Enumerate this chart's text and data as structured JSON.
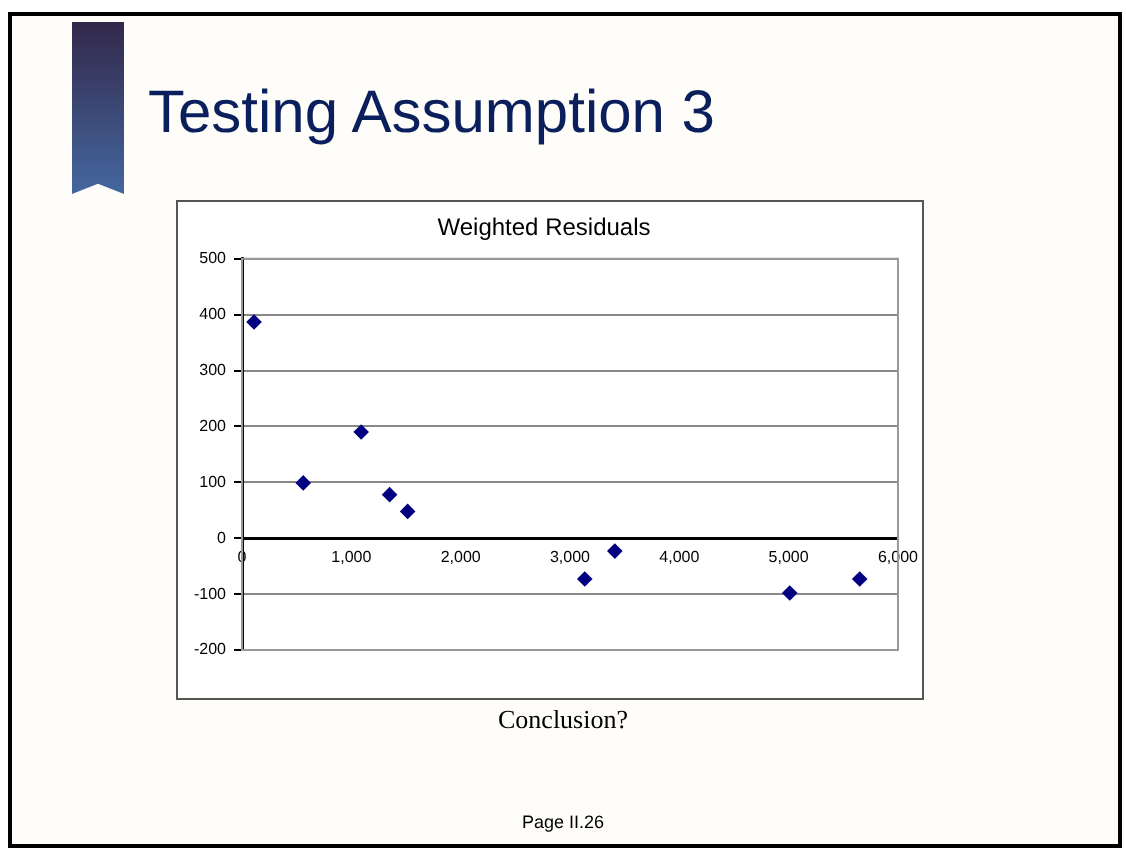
{
  "chart_data": {
    "type": "scatter",
    "title": "Testing Assumption 3",
    "subtitle": "Weighted Residuals",
    "x": [
      110,
      560,
      1090,
      1350,
      1515,
      3135,
      3410,
      5010,
      5650
    ],
    "series": [
      {
        "color": "#000080",
        "values": [
          387,
          99,
          190,
          78,
          48,
          -73,
          -23,
          -98,
          -73
        ]
      }
    ],
    "xlim": [
      0,
      6000
    ],
    "xticks": [
      0,
      {
        "value": 1000,
        "label": "1,000"
      },
      {
        "value": 2000,
        "label": "2,000"
      },
      {
        "value": 3000,
        "label": "3,000"
      },
      {
        "value": 4000,
        "label": "4,000"
      },
      {
        "value": 5000,
        "label": "5,000"
      },
      {
        "value": 6000,
        "label": "6,000"
      }
    ],
    "ylim": [
      -200,
      500
    ],
    "yticks": [
      -200,
      -100,
      0,
      100,
      200,
      300,
      400,
      500
    ],
    "grid": "y",
    "legend": false,
    "marker": "diamond",
    "annotations": [
      "Conclusion?",
      "Page II.26"
    ]
  }
}
